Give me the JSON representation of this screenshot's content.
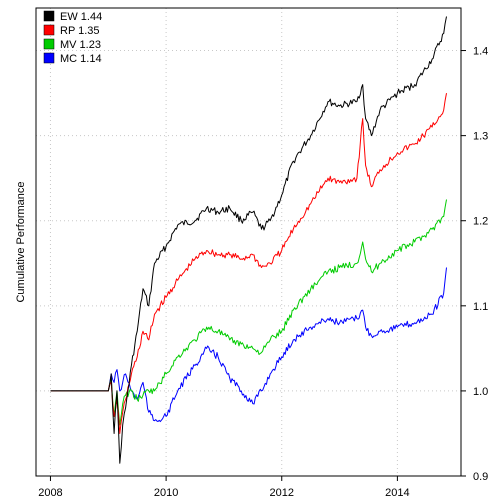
{
  "chart_data": {
    "type": "line",
    "title": "",
    "xlabel": "",
    "ylabel": "Cumulative Performance",
    "xlim": [
      2007.75,
      2015.1
    ],
    "ylim": [
      0.9,
      1.45
    ],
    "x_ticks": [
      {
        "value": 2008,
        "label": "2008"
      },
      {
        "value": 2010,
        "label": "2010"
      },
      {
        "value": 2012,
        "label": "2012"
      },
      {
        "value": 2014,
        "label": "2014"
      }
    ],
    "y_ticks": [
      {
        "value": 0.9,
        "label": "0.9"
      },
      {
        "value": 1.0,
        "label": "1.0"
      },
      {
        "value": 1.1,
        "label": "1.1"
      },
      {
        "value": 1.2,
        "label": "1.2"
      },
      {
        "value": 1.3,
        "label": "1.3"
      },
      {
        "value": 1.4,
        "label": "1.4"
      }
    ],
    "grid": true,
    "y_axis_side": "right",
    "legend_position": "top-left",
    "series": [
      {
        "name": "EW 1.44",
        "color": "#000000",
        "x": [
          2008.0,
          2009.0,
          2009.05,
          2009.1,
          2009.15,
          2009.2,
          2009.25,
          2009.3,
          2009.4,
          2009.5,
          2009.6,
          2009.7,
          2009.8,
          2010.0,
          2010.2,
          2010.5,
          2010.7,
          2010.9,
          2011.1,
          2011.3,
          2011.5,
          2011.65,
          2011.8,
          2012.0,
          2012.2,
          2012.5,
          2012.8,
          2013.0,
          2013.3,
          2013.4,
          2013.45,
          2013.55,
          2013.7,
          2014.0,
          2014.3,
          2014.6,
          2014.8,
          2014.85
        ],
        "y": [
          1.0,
          1.0,
          1.02,
          0.95,
          1.0,
          0.915,
          0.96,
          0.98,
          1.03,
          1.07,
          1.12,
          1.1,
          1.15,
          1.17,
          1.195,
          1.2,
          1.215,
          1.21,
          1.215,
          1.2,
          1.21,
          1.19,
          1.2,
          1.23,
          1.27,
          1.3,
          1.34,
          1.335,
          1.34,
          1.36,
          1.32,
          1.3,
          1.33,
          1.35,
          1.36,
          1.39,
          1.42,
          1.44
        ]
      },
      {
        "name": "RP 1.35",
        "color": "#ff0000",
        "x": [
          2008.0,
          2009.0,
          2009.05,
          2009.1,
          2009.15,
          2009.2,
          2009.25,
          2009.3,
          2009.4,
          2009.5,
          2009.6,
          2009.7,
          2009.8,
          2010.0,
          2010.2,
          2010.5,
          2010.7,
          2010.9,
          2011.1,
          2011.3,
          2011.5,
          2011.65,
          2011.8,
          2012.0,
          2012.2,
          2012.5,
          2012.8,
          2013.0,
          2013.3,
          2013.4,
          2013.45,
          2013.55,
          2013.7,
          2014.0,
          2014.3,
          2014.6,
          2014.8,
          2014.85
        ],
        "y": [
          1.0,
          1.0,
          1.01,
          0.97,
          0.99,
          0.95,
          0.975,
          0.99,
          1.02,
          1.04,
          1.07,
          1.06,
          1.09,
          1.11,
          1.13,
          1.155,
          1.165,
          1.16,
          1.16,
          1.155,
          1.16,
          1.145,
          1.15,
          1.165,
          1.19,
          1.22,
          1.25,
          1.245,
          1.25,
          1.32,
          1.265,
          1.24,
          1.26,
          1.28,
          1.29,
          1.31,
          1.33,
          1.35
        ]
      },
      {
        "name": "MV 1.23",
        "color": "#00cc00",
        "x": [
          2008.0,
          2009.0,
          2009.05,
          2009.1,
          2009.15,
          2009.2,
          2009.25,
          2009.3,
          2009.4,
          2009.5,
          2009.6,
          2009.7,
          2009.8,
          2010.0,
          2010.2,
          2010.5,
          2010.7,
          2010.9,
          2011.1,
          2011.3,
          2011.5,
          2011.65,
          2011.8,
          2012.0,
          2012.2,
          2012.5,
          2012.8,
          2013.0,
          2013.3,
          2013.4,
          2013.45,
          2013.55,
          2013.7,
          2014.0,
          2014.3,
          2014.6,
          2014.8,
          2014.85
        ],
        "y": [
          1.0,
          1.0,
          1.015,
          0.97,
          1.0,
          0.96,
          0.985,
          0.995,
          1.0,
          0.99,
          0.995,
          1.0,
          1.0,
          1.02,
          1.04,
          1.06,
          1.075,
          1.07,
          1.06,
          1.055,
          1.05,
          1.045,
          1.06,
          1.07,
          1.095,
          1.12,
          1.14,
          1.145,
          1.15,
          1.175,
          1.155,
          1.14,
          1.15,
          1.165,
          1.175,
          1.19,
          1.205,
          1.225
        ]
      },
      {
        "name": "MC 1.14",
        "color": "#0000ff",
        "x": [
          2008.0,
          2009.0,
          2009.05,
          2009.1,
          2009.15,
          2009.2,
          2009.25,
          2009.3,
          2009.4,
          2009.5,
          2009.6,
          2009.7,
          2009.8,
          2010.0,
          2010.2,
          2010.5,
          2010.7,
          2010.9,
          2011.1,
          2011.3,
          2011.5,
          2011.65,
          2011.8,
          2012.0,
          2012.2,
          2012.5,
          2012.8,
          2013.0,
          2013.3,
          2013.4,
          2013.45,
          2013.55,
          2013.7,
          2014.0,
          2014.3,
          2014.6,
          2014.8,
          2014.85
        ],
        "y": [
          1.0,
          1.0,
          1.02,
          1.01,
          1.025,
          1.0,
          1.01,
          1.02,
          1.0,
          0.99,
          1.01,
          0.975,
          0.965,
          0.97,
          1.0,
          1.03,
          1.05,
          1.04,
          1.015,
          1.0,
          0.985,
          1.0,
          1.02,
          1.04,
          1.06,
          1.075,
          1.085,
          1.08,
          1.085,
          1.095,
          1.075,
          1.065,
          1.07,
          1.075,
          1.08,
          1.09,
          1.115,
          1.145
        ]
      }
    ]
  }
}
